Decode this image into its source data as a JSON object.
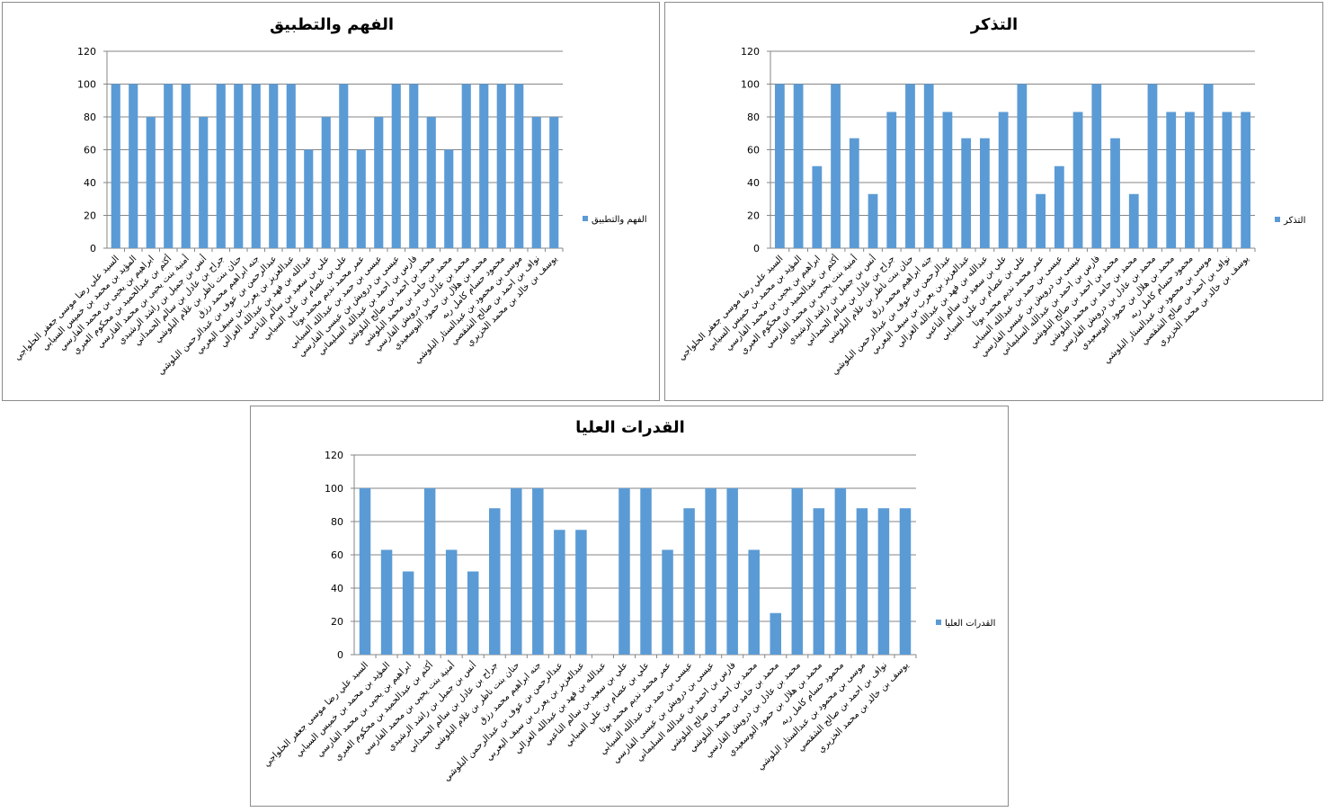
{
  "chart_data": [
    {
      "type": "bar",
      "title": "الفهم والتطبيق",
      "ylim": [
        0,
        120
      ],
      "yticks": [
        0,
        20,
        40,
        60,
        80,
        100,
        120
      ],
      "grid": true,
      "legend_position": "right",
      "color": "#5B9BD5",
      "categories_ref": "names",
      "series": [
        {
          "name": "الفهم والتطبيق",
          "values": [
            100,
            100,
            80,
            100,
            100,
            80,
            100,
            100,
            100,
            100,
            100,
            60,
            80,
            100,
            60,
            80,
            100,
            100,
            80,
            60,
            100,
            100,
            100,
            100,
            80,
            80
          ]
        }
      ]
    },
    {
      "type": "bar",
      "title": "التذكر",
      "ylim": [
        0,
        120
      ],
      "yticks": [
        0,
        20,
        40,
        60,
        80,
        100,
        120
      ],
      "grid": true,
      "legend_position": "right",
      "color": "#5B9BD5",
      "categories_ref": "names",
      "series": [
        {
          "name": "التذكر",
          "values": [
            100,
            100,
            50,
            100,
            67,
            33,
            83,
            100,
            100,
            83,
            67,
            67,
            83,
            100,
            33,
            50,
            83,
            100,
            67,
            33,
            100,
            83,
            83,
            100,
            83,
            83
          ]
        }
      ]
    },
    {
      "type": "bar",
      "title": "القدرات العليا",
      "ylim": [
        0,
        120
      ],
      "yticks": [
        0,
        20,
        40,
        60,
        80,
        100,
        120
      ],
      "grid": true,
      "legend_position": "right",
      "color": "#5B9BD5",
      "categories_ref": "names",
      "series": [
        {
          "name": "القدرات العليا",
          "values": [
            100,
            63,
            50,
            100,
            63,
            50,
            88,
            100,
            100,
            75,
            75,
            0,
            100,
            100,
            63,
            88,
            100,
            100,
            63,
            25,
            100,
            88,
            100,
            88,
            88,
            88
          ]
        }
      ]
    }
  ],
  "names": [
    "السيد علي رضا موسى جعفر الحلواجي",
    "المؤيد بن محمد بن خميس السيابي",
    "ابراهيم بن يحيى بن محمد الفارسي",
    "أكثم بن عبدالحميد بن محكوم العبري",
    "أمنية بنت يحيى بن محمد الفارسي",
    "أنس بن جميل بن راشد الرشيدي",
    "جراح بن عادل بن سالم الحمداني",
    "حنان بنت ناظر بن غلام البلوشي",
    "جنه ابراهيم محمد رزق",
    "عبدالرحمن بن عوف بن عبدالرحمن البلوشي",
    "عبدالعزيز بن يعرب بن سيف اليعربي",
    "عبدالله بن فهد بن عبدالله الغزالي",
    "علي بن سعيد بن سالم الناعبي",
    "علي بن عصام بن علي السيابي",
    "عمر محمد نديم محمد بوتا",
    "عيسى بن حمد بن عبدالله السيابي",
    "عيسى بن درويش بن عيسى الفارسي",
    "فارس بن احمد بن عبدالله السليماني",
    "محمد بن احمد بن صالح البلوشي",
    "محمد بن حامد بن محمد البلوشي",
    "محمد بن عادل بن درويش الفارسي",
    "محمد بن هلال بن حمود البوسعيدي",
    "محمود حسام كامل ربه",
    "موسى بن محمود بن عبدالستار البلوشي",
    "نواف بن احمد بن صالح الشقصي",
    "يوسف بن خالد بن محمد الخزيري"
  ]
}
